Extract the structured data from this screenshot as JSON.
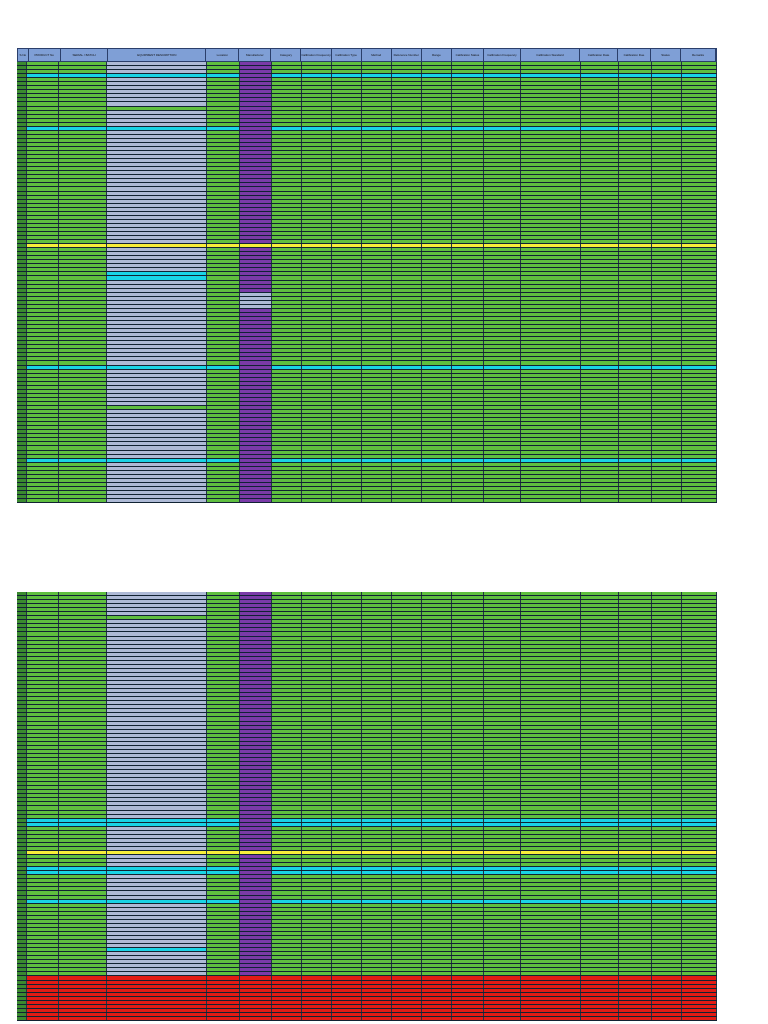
{
  "columns": [
    {
      "key": "no",
      "label": "S.No"
    },
    {
      "key": "pn",
      "label": "PRODUCT No"
    },
    {
      "key": "sn",
      "label": "SERIAL / BATCH"
    },
    {
      "key": "desc",
      "label": "EQUIPMENT DESCRIPTION"
    },
    {
      "key": "loc",
      "label": "Location"
    },
    {
      "key": "ref",
      "label": "Manufacturer"
    },
    {
      "key": "cat",
      "label": "Category"
    },
    {
      "key": "c8",
      "label": "Calibration Frequency"
    },
    {
      "key": "c9",
      "label": "Calibration Type"
    },
    {
      "key": "c10",
      "label": "Method"
    },
    {
      "key": "c11",
      "label": "Reference Number"
    },
    {
      "key": "c12",
      "label": "Range"
    },
    {
      "key": "c13",
      "label": "Calibration Status"
    },
    {
      "key": "freq",
      "label": "Calibration Frequency"
    },
    {
      "key": "std",
      "label": "Calibration Standard"
    },
    {
      "key": "cal",
      "label": "Calibration Date"
    },
    {
      "key": "due",
      "label": "Calibration Due"
    },
    {
      "key": "status",
      "label": "Status"
    },
    {
      "key": "rem",
      "label": "Remarks"
    }
  ],
  "rows_top": [],
  "rows_bottom": []
}
